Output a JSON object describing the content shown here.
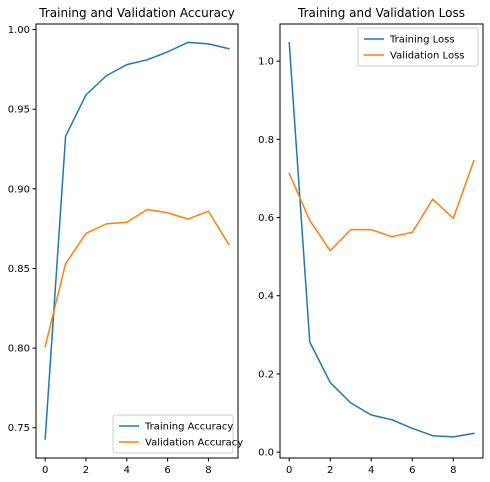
{
  "chart_data": [
    {
      "type": "line",
      "title": "Training and Validation Accuracy",
      "xlabel": "",
      "ylabel": "",
      "xlim": [
        -0.45,
        9.45
      ],
      "ylim": [
        0.731,
        1.0035
      ],
      "xticks": [
        0,
        2,
        4,
        6,
        8
      ],
      "yticks": [
        0.75,
        0.8,
        0.85,
        0.9,
        0.95,
        1.0
      ],
      "ytick_labels": [
        "0.75",
        "0.80",
        "0.85",
        "0.90",
        "0.95",
        "1.00"
      ],
      "legend_position": "lower-right",
      "grid": false,
      "x": [
        0,
        1,
        2,
        3,
        4,
        5,
        6,
        7,
        8,
        9
      ],
      "series": [
        {
          "name": "Training Accuracy",
          "color": "#1f77b4",
          "values": [
            0.743,
            0.933,
            0.959,
            0.971,
            0.978,
            0.981,
            0.986,
            0.992,
            0.991,
            0.988
          ]
        },
        {
          "name": "Validation Accuracy",
          "color": "#ff7f0e",
          "values": [
            0.801,
            0.853,
            0.872,
            0.878,
            0.879,
            0.887,
            0.885,
            0.881,
            0.886,
            0.865
          ]
        }
      ]
    },
    {
      "type": "line",
      "title": "Training and Validation Loss",
      "xlabel": "",
      "ylabel": "",
      "xlim": [
        -0.45,
        9.45
      ],
      "ylim": [
        -0.015,
        1.095
      ],
      "xticks": [
        0,
        2,
        4,
        6,
        8
      ],
      "yticks": [
        0.0,
        0.2,
        0.4,
        0.6,
        0.8,
        1.0
      ],
      "ytick_labels": [
        "0.0",
        "0.2",
        "0.4",
        "0.6",
        "0.8",
        "1.0"
      ],
      "legend_position": "upper-right",
      "grid": false,
      "x": [
        0,
        1,
        2,
        3,
        4,
        5,
        6,
        7,
        8,
        9
      ],
      "series": [
        {
          "name": "Training Loss",
          "color": "#1f77b4",
          "values": [
            1.047,
            0.282,
            0.178,
            0.126,
            0.095,
            0.083,
            0.061,
            0.042,
            0.039,
            0.048
          ]
        },
        {
          "name": "Validation Loss",
          "color": "#ff7f0e",
          "values": [
            0.713,
            0.593,
            0.515,
            0.569,
            0.569,
            0.551,
            0.562,
            0.647,
            0.598,
            0.745
          ]
        }
      ]
    }
  ]
}
